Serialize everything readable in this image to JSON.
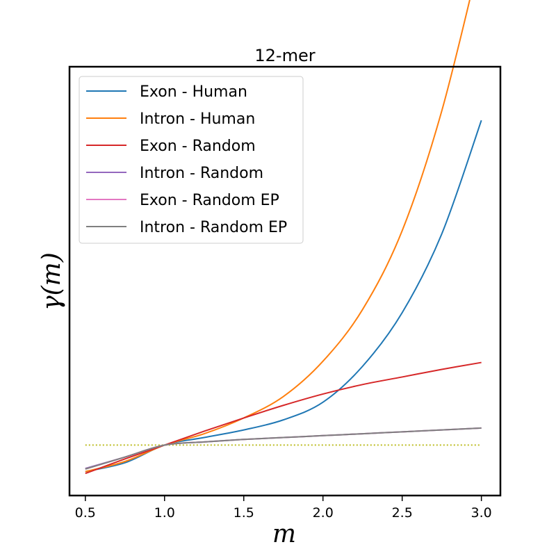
{
  "chart_data": {
    "type": "line",
    "title": "12-mer",
    "xlabel": "m",
    "ylabel": "γ(m)",
    "xlim": [
      0.4,
      3.12
    ],
    "ylim": [
      0.92,
      1.6
    ],
    "x_ticks": [
      "0.5",
      "1.0",
      "1.5",
      "2.0",
      "2.5",
      "3.0"
    ],
    "x_tick_values": [
      0.5,
      1.0,
      1.5,
      2.0,
      2.5,
      3.0
    ],
    "y_ticks_visible": false,
    "grid": false,
    "legend_position": "top-left",
    "x": [
      0.5,
      0.75,
      1.0,
      1.25,
      1.5,
      1.75,
      2.0,
      2.25,
      2.5,
      2.75,
      3.0
    ],
    "series": [
      {
        "name": "Exon - Human",
        "color": "#1f77b4",
        "values": [
          0.958,
          0.972,
          1.0,
          1.012,
          1.024,
          1.04,
          1.068,
          1.125,
          1.21,
          1.335,
          1.515
        ]
      },
      {
        "name": "Intron - Human",
        "color": "#ff7f0e",
        "values": [
          0.958,
          0.974,
          1.0,
          1.018,
          1.043,
          1.077,
          1.133,
          1.215,
          1.34,
          1.53,
          1.783
        ]
      },
      {
        "name": "Exon - Random",
        "color": "#d62728",
        "values": [
          0.955,
          0.978,
          1.0,
          1.022,
          1.043,
          1.063,
          1.081,
          1.096,
          1.108,
          1.12,
          1.131
        ]
      },
      {
        "name": "Intron - Random",
        "color": "#9467bd",
        "values": [
          0.963,
          0.981,
          1.0,
          1.005,
          1.009,
          1.012,
          1.015,
          1.018,
          1.021,
          1.024,
          1.027
        ]
      },
      {
        "name": "Exon - Random EP",
        "color": "#e377c2",
        "values": [
          0.962,
          0.981,
          1.0,
          1.005,
          1.009,
          1.012,
          1.015,
          1.018,
          1.021,
          1.024,
          1.027
        ]
      },
      {
        "name": "Intron - Random EP",
        "color": "#7f7f7f",
        "values": [
          0.962,
          0.981,
          1.0,
          1.005,
          1.009,
          1.012,
          1.015,
          1.018,
          1.021,
          1.024,
          1.027
        ]
      }
    ],
    "reference_line": {
      "y": 1.0,
      "color": "#bcbd22",
      "style": "dotted"
    }
  }
}
